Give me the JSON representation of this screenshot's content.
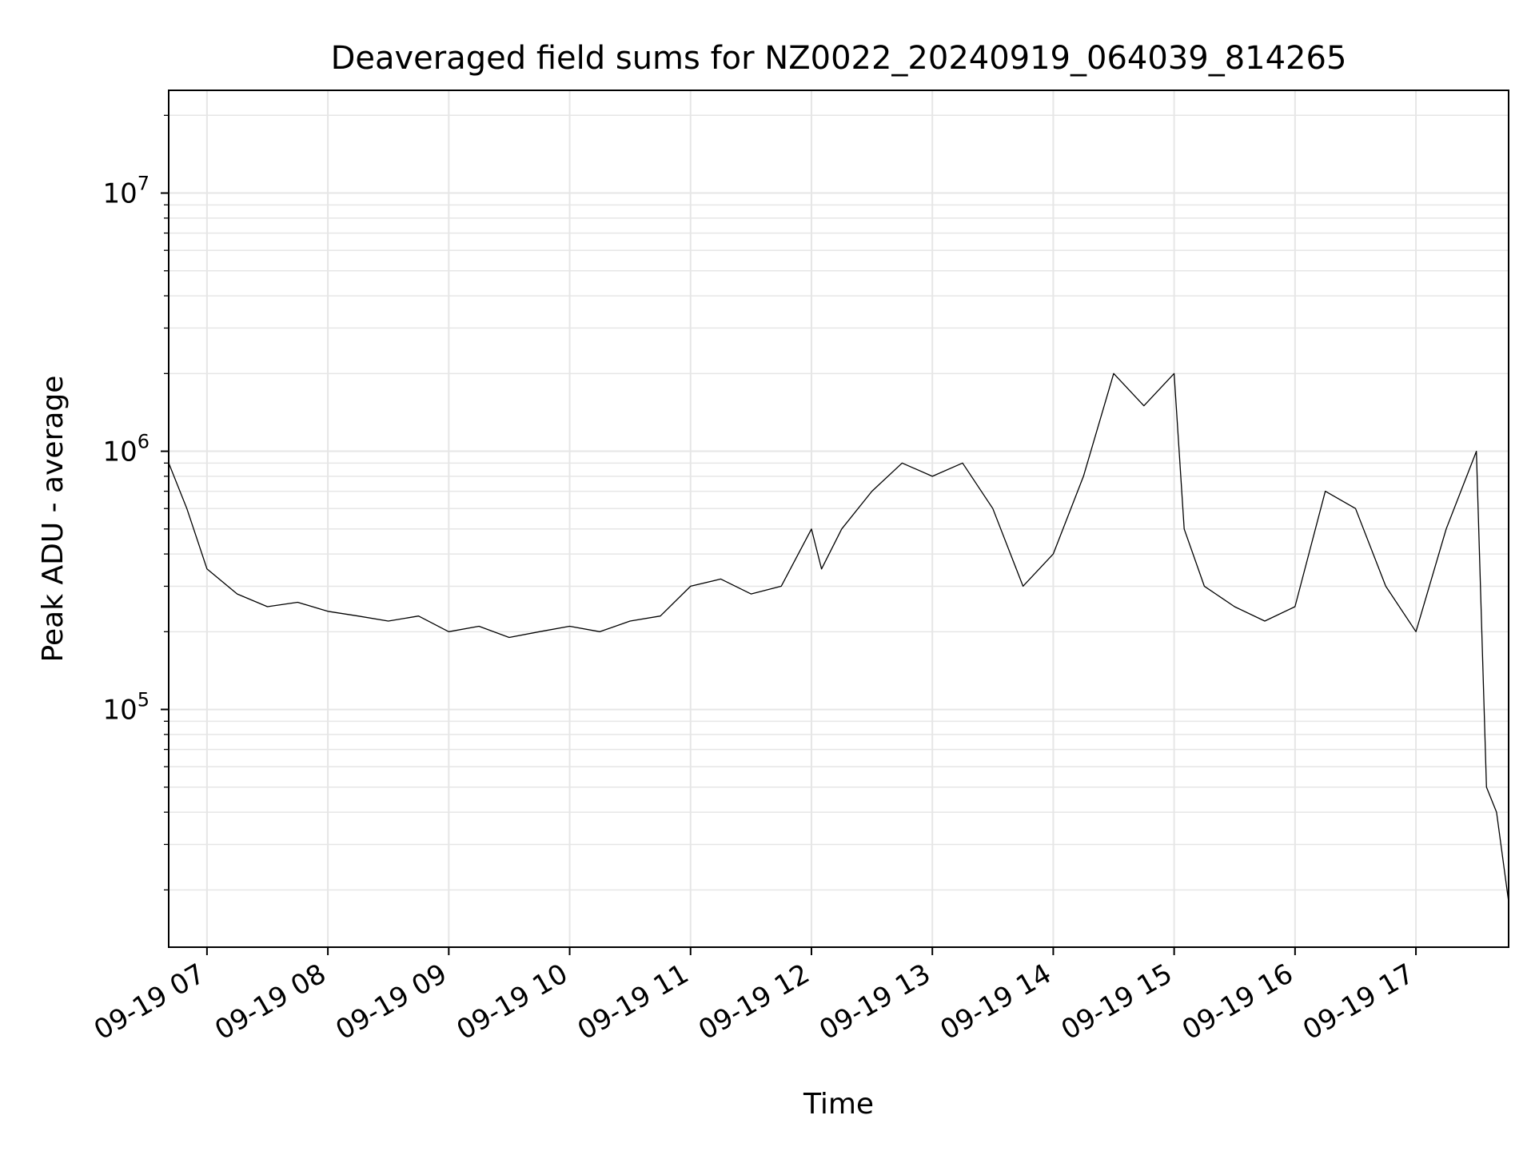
{
  "chart_data": {
    "type": "line",
    "title": "Deaveraged field sums for NZ0022_20240919_064039_814265",
    "xlabel": "Time",
    "ylabel": "Peak ADU - average",
    "yscale": "log",
    "ylim": [
      12000,
      25000000
    ],
    "xlim": [
      "09-19 06:41",
      "09-19 17:46"
    ],
    "grid": true,
    "legend": "none",
    "line_color": "#000000",
    "x_ticks": [
      "09-19 07",
      "09-19 08",
      "09-19 09",
      "09-19 10",
      "09-19 11",
      "09-19 12",
      "09-19 13",
      "09-19 14",
      "09-19 15",
      "09-19 16",
      "09-19 17"
    ],
    "y_ticks": [
      {
        "value": 100000,
        "base": "10",
        "exp": "5"
      },
      {
        "value": 1000000,
        "base": "10",
        "exp": "6"
      },
      {
        "value": 10000000,
        "base": "10",
        "exp": "7"
      }
    ],
    "series": [
      {
        "x": [
          "09-19 06:41",
          "09-19 06:50",
          "09-19 07:00",
          "09-19 07:15",
          "09-19 07:30",
          "09-19 07:45",
          "09-19 08:00",
          "09-19 08:15",
          "09-19 08:30",
          "09-19 08:45",
          "09-19 09:00",
          "09-19 09:15",
          "09-19 09:30",
          "09-19 09:45",
          "09-19 10:00",
          "09-19 10:15",
          "09-19 10:30",
          "09-19 10:45",
          "09-19 11:00",
          "09-19 11:15",
          "09-19 11:30",
          "09-19 11:45",
          "09-19 12:00",
          "09-19 12:05",
          "09-19 12:15",
          "09-19 12:30",
          "09-19 12:45",
          "09-19 13:00",
          "09-19 13:15",
          "09-19 13:30",
          "09-19 13:45",
          "09-19 14:00",
          "09-19 14:15",
          "09-19 14:30",
          "09-19 14:45",
          "09-19 15:00",
          "09-19 15:05",
          "09-19 15:15",
          "09-19 15:30",
          "09-19 15:45",
          "09-19 16:00",
          "09-19 16:15",
          "09-19 16:30",
          "09-19 16:45",
          "09-19 17:00",
          "09-19 17:15",
          "09-19 17:30",
          "09-19 17:35",
          "09-19 17:40",
          "09-19 17:46"
        ],
        "y": [
          900000,
          600000,
          350000,
          280000,
          250000,
          260000,
          240000,
          230000,
          220000,
          230000,
          200000,
          210000,
          190000,
          200000,
          210000,
          200000,
          220000,
          230000,
          300000,
          320000,
          280000,
          300000,
          500000,
          350000,
          500000,
          700000,
          900000,
          800000,
          900000,
          600000,
          300000,
          400000,
          800000,
          2000000,
          1500000,
          2000000,
          500000,
          300000,
          250000,
          220000,
          250000,
          700000,
          600000,
          300000,
          200000,
          500000,
          1000000,
          50000,
          40000,
          18000
        ]
      }
    ]
  }
}
